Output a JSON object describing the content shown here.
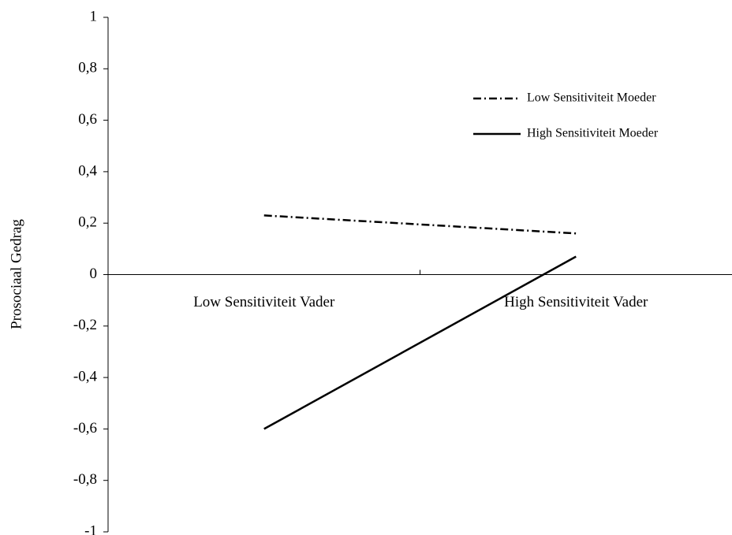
{
  "chart_data": {
    "type": "line",
    "ylabel": "Prosociaal Gedrag",
    "categories": [
      "Low Sensitiviteit Vader",
      "High Sensitiviteit Vader"
    ],
    "series": [
      {
        "name": "Low Sensitiviteit Moeder",
        "color": "#000000",
        "dash": "dashdot",
        "values": [
          0.23,
          0.16
        ]
      },
      {
        "name": "High Sensitiviteit Moeder",
        "color": "#000000",
        "dash": "solid",
        "values": [
          -0.6,
          0.07
        ]
      }
    ],
    "ylim": [
      -1,
      1
    ],
    "yticks": [
      -1,
      {
        "value": -0.8,
        "label": "-0,8"
      },
      {
        "value": -0.6,
        "label": "-0,6"
      },
      {
        "value": -0.4,
        "label": "-0,4"
      },
      {
        "value": -0.2,
        "label": "-0,2"
      },
      0,
      {
        "value": 0.2,
        "label": "0,2"
      },
      {
        "value": 0.4,
        "label": "0,4"
      },
      {
        "value": 0.6,
        "label": "0,6"
      },
      {
        "value": 0.8,
        "label": "0,8"
      },
      1
    ],
    "grid": false,
    "legend": "upper right"
  }
}
